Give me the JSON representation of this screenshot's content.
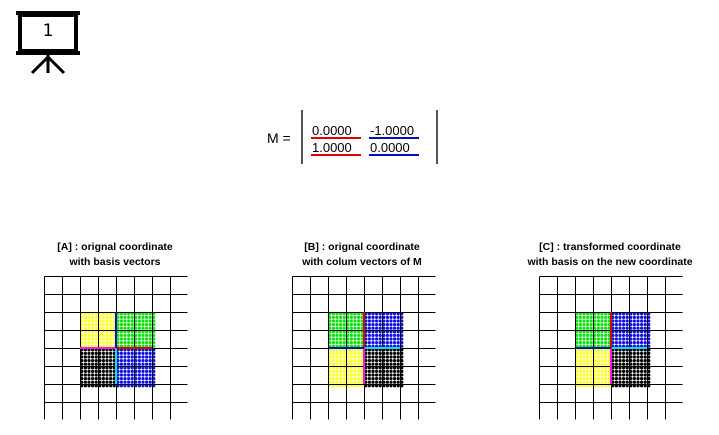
{
  "slide": {
    "number": "1"
  },
  "matrix": {
    "label": "M =",
    "rows": [
      [
        "0.0000",
        "-1.0000"
      ],
      [
        "1.0000",
        "0.0000"
      ]
    ],
    "column_colors": [
      "#e00000",
      "#0010c0"
    ]
  },
  "panels": [
    {
      "title_line1": "[A] : orignal coordinate",
      "title_line2": "with basis vectors",
      "quadrants": {
        "top_left": "#ffff30",
        "top_right": "#10e010",
        "bottom_left": "#000000",
        "bottom_right": "#1010e0"
      },
      "axis_lines": {
        "horizontal": "#ff10ff",
        "vertical": "#10e0e0",
        "vec_x": "#e00000",
        "vec_y": "#0010c0"
      }
    },
    {
      "title_line1": "[B] : orignal coordinate",
      "title_line2": "with colum vectors of M",
      "quadrants": {
        "top_left": "#10e010",
        "top_right": "#1010e0",
        "bottom_left": "#ffff30",
        "bottom_right": "#000000"
      },
      "axis_lines": {
        "horizontal": "#10e0e0",
        "vertical": "#ff10ff",
        "vec_x": "#e00000",
        "vec_y": "#0010c0"
      }
    },
    {
      "title_line1": "[C] : transformed coordinate",
      "title_line2": "with basis on the new coordinate",
      "quadrants": {
        "top_left": "#10e010",
        "top_right": "#1010e0",
        "bottom_left": "#ffff30",
        "bottom_right": "#000000"
      },
      "axis_lines": {
        "horizontal": "#10e0e0",
        "vertical": "#ff10ff",
        "vec_x": "#e00000",
        "vec_y": "#0010c0"
      }
    }
  ]
}
